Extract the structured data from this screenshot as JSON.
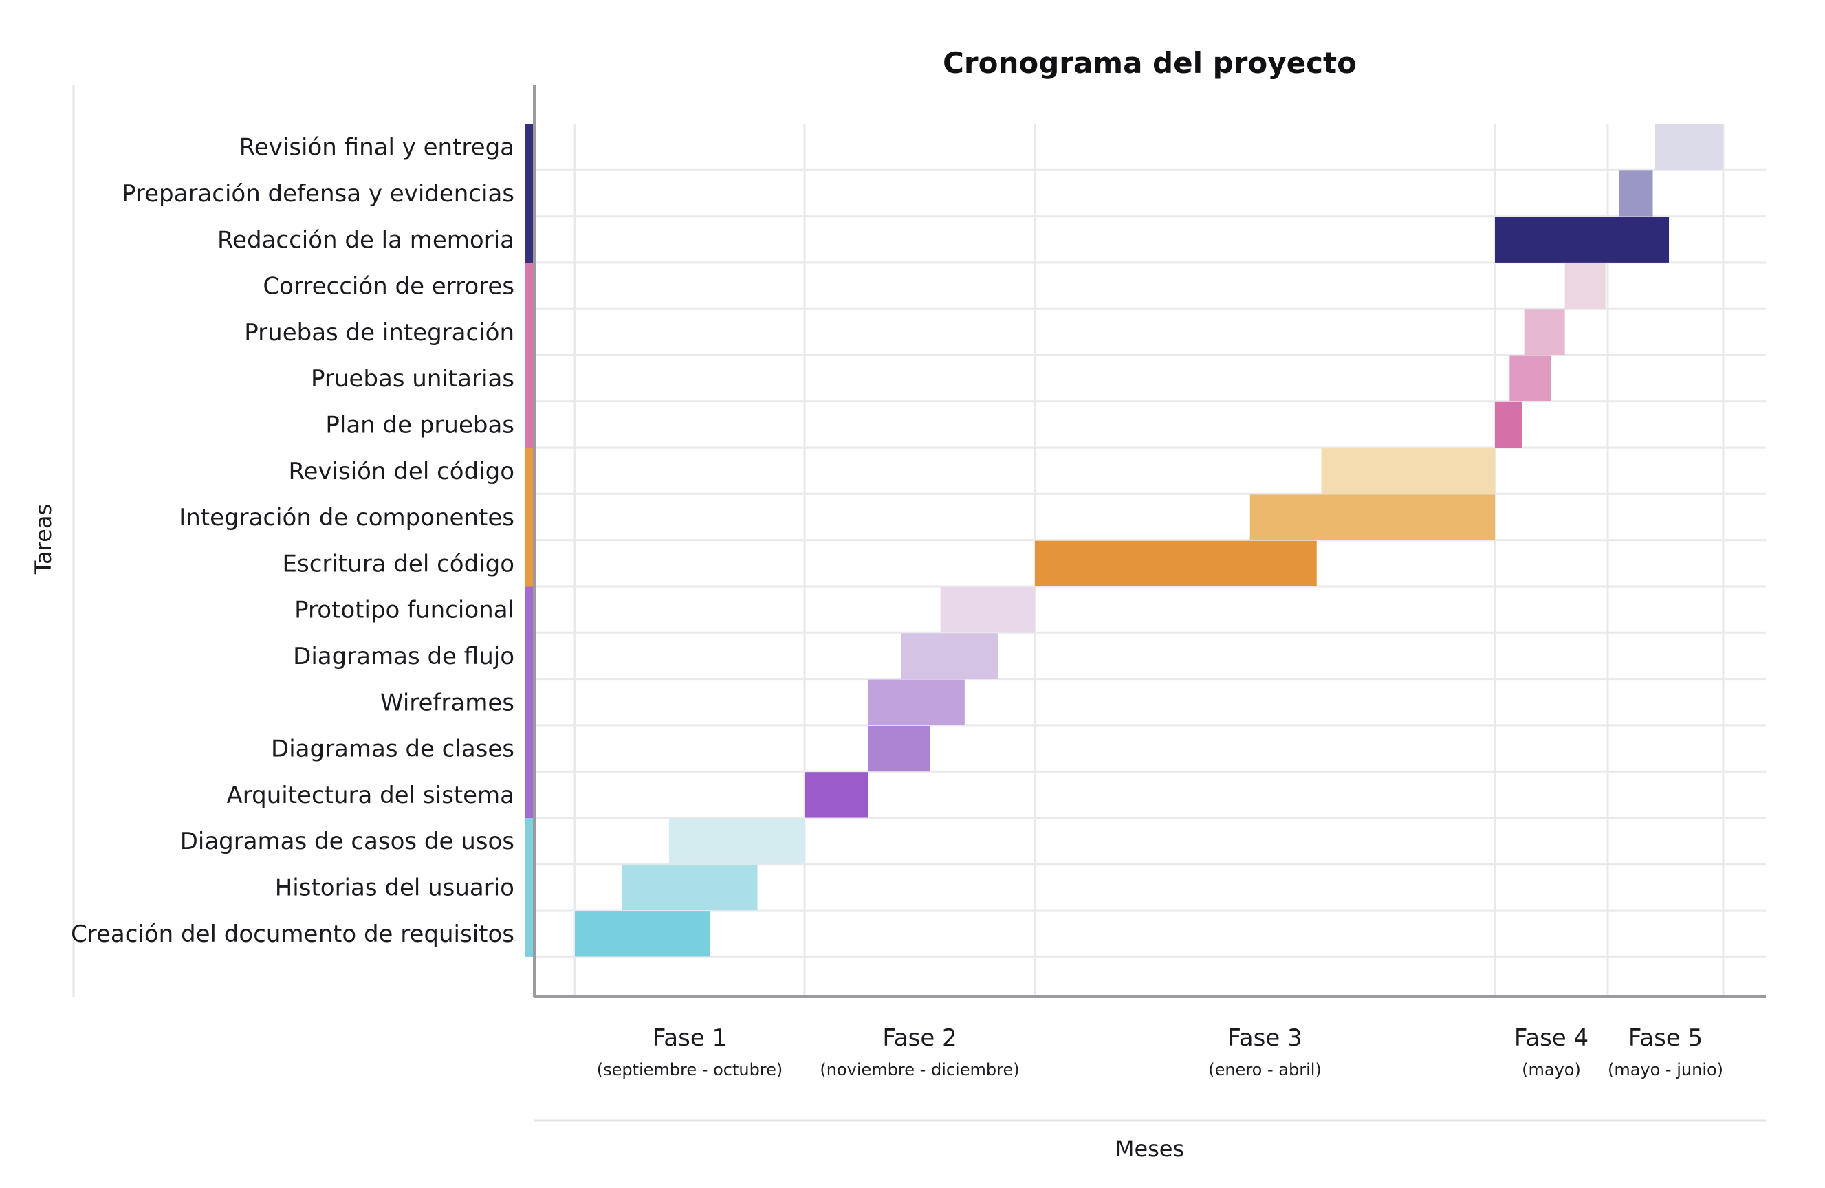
{
  "chart_data": {
    "type": "gantt",
    "title": "Cronograma del proyecto",
    "xlabel": "Meses",
    "ylabel": "Tareas",
    "xlim": [
      0,
      9
    ],
    "grid": true,
    "phases": [
      {
        "label": "Fase 1",
        "sub": "(septiembre - octubre)",
        "start": 0,
        "end": 2
      },
      {
        "label": "Fase 2",
        "sub": "(noviembre - diciembre)",
        "start": 2,
        "end": 4
      },
      {
        "label": "Fase 3",
        "sub": "(enero - abril)",
        "start": 4,
        "end": 8
      },
      {
        "label": "Fase 4",
        "sub": "(mayo)",
        "start": 8,
        "end": 9
      },
      {
        "label": "Fase 5",
        "sub": "(mayo - junio)",
        "start": 9,
        "end": 10
      }
    ],
    "tasks": [
      {
        "name": "Creación del documento de requisitos",
        "start": 0.0,
        "end": 1.18,
        "color": "#78cfdf",
        "group_color": "#7fd0de"
      },
      {
        "name": "Historias del usuario",
        "start": 0.41,
        "end": 1.59,
        "color": "#aadfe7",
        "group_color": "#7fd0de"
      },
      {
        "name": "Diagramas de casos de usos",
        "start": 0.82,
        "end": 2.0,
        "color": "#d4ecf0",
        "group_color": "#7fd0de"
      },
      {
        "name": "Arquitectura del sistema",
        "start": 2.0,
        "end": 2.55,
        "color": "#9a5ccb",
        "group_color": "#a36ad0"
      },
      {
        "name": "Diagramas de clases",
        "start": 2.55,
        "end": 3.09,
        "color": "#ad84d3",
        "group_color": "#a36ad0"
      },
      {
        "name": "Wireframes",
        "start": 2.55,
        "end": 3.39,
        "color": "#c2a2dc",
        "group_color": "#a36ad0"
      },
      {
        "name": "Diagramas de flujo",
        "start": 2.84,
        "end": 3.68,
        "color": "#d5c3e6",
        "group_color": "#a36ad0"
      },
      {
        "name": "Prototipo funcional",
        "start": 3.18,
        "end": 4.0,
        "color": "#e8d8e9",
        "group_color": "#a36ad0"
      },
      {
        "name": "Escritura del código",
        "start": 4.0,
        "end": 6.45,
        "color": "#e4943a",
        "group_color": "#e89a3f"
      },
      {
        "name": "Integración de componentes",
        "start": 5.87,
        "end": 8.0,
        "color": "#ecb86c",
        "group_color": "#e89a3f"
      },
      {
        "name": "Revisión del código",
        "start": 6.49,
        "end": 8.0,
        "color": "#f4dcb0",
        "group_color": "#e89a3f"
      },
      {
        "name": "Plan de pruebas",
        "start": 8.0,
        "end": 8.24,
        "color": "#d570a8",
        "group_color": "#d978a8"
      },
      {
        "name": "Pruebas unitarias",
        "start": 8.13,
        "end": 8.5,
        "color": "#e09bc3",
        "group_color": "#d978a8"
      },
      {
        "name": "Pruebas de integración",
        "start": 8.26,
        "end": 8.62,
        "color": "#e6b9d1",
        "group_color": "#d978a8"
      },
      {
        "name": "Corrección de errores",
        "start": 8.62,
        "end": 8.98,
        "color": "#ecd6e2",
        "group_color": "#d978a8"
      },
      {
        "name": "Redacción de la memoria",
        "start": 8.0,
        "end": 9.53,
        "color": "#2f2a78",
        "group_color": "#35307c"
      },
      {
        "name": "Preparación defensa y evidencias",
        "start": 9.1,
        "end": 9.39,
        "color": "#9b97c4",
        "group_color": "#35307c"
      },
      {
        "name": "Revisión final y entrega",
        "start": 9.41,
        "end": 10.0,
        "color": "#dcdbea",
        "group_color": "#35307c"
      }
    ]
  }
}
